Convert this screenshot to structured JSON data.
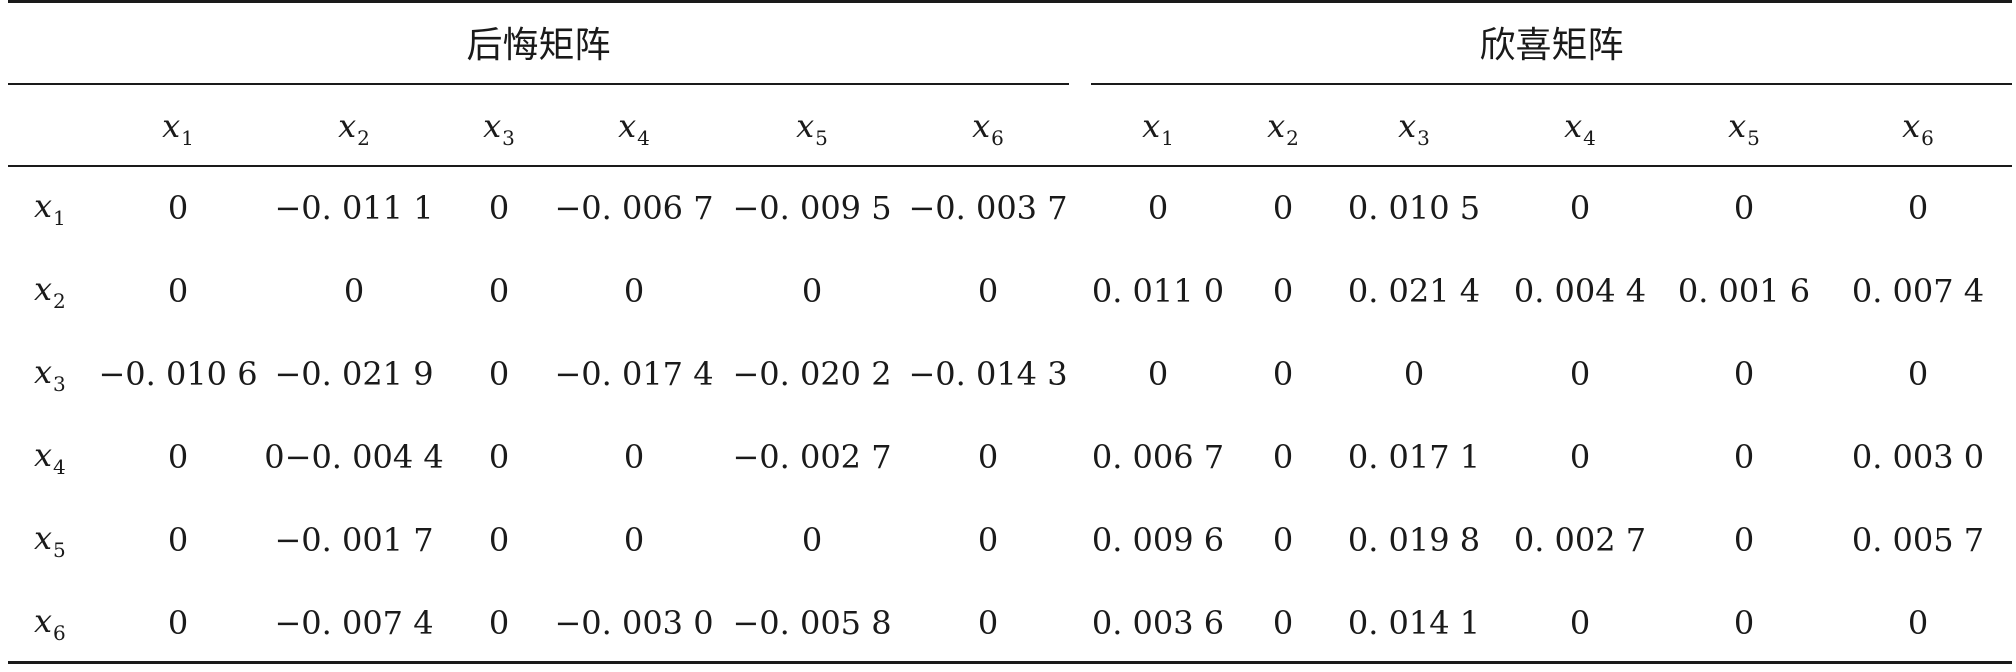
{
  "groups": {
    "regret": "后悔矩阵",
    "rejoice": "欣喜矩阵"
  },
  "var_symbol": "x",
  "col_subs": [
    "1",
    "2",
    "3",
    "4",
    "5",
    "6",
    "1",
    "2",
    "3",
    "4",
    "5",
    "6"
  ],
  "row_subs": [
    "1",
    "2",
    "3",
    "4",
    "5",
    "6"
  ],
  "rows": [
    [
      "0",
      "−0. 011 1",
      "0",
      "−0. 006 7",
      "−0. 009 5",
      "−0. 003 7",
      "0",
      "0",
      "0. 010 5",
      "0",
      "0",
      "0"
    ],
    [
      "0",
      "0",
      "0",
      "0",
      "0",
      "0",
      "0. 011 0",
      "0",
      "0. 021 4",
      "0. 004 4",
      "0. 001 6",
      "0. 007 4"
    ],
    [
      "−0. 010 6",
      "−0. 021 9",
      "0",
      "−0. 017 4",
      "−0. 020 2",
      "−0. 014 3",
      "0",
      "0",
      "0",
      "0",
      "0",
      "0"
    ],
    [
      "0",
      "0−0. 004 4",
      "0",
      "0",
      "−0. 002 7",
      "0",
      "0. 006 7",
      "0",
      "0. 017 1",
      "0",
      "0",
      "0. 003 0"
    ],
    [
      "0",
      "−0. 001 7",
      "0",
      "0",
      "0",
      "0",
      "0. 009 6",
      "0",
      "0. 019 8",
      "0. 002 7",
      "0",
      "0. 005 7"
    ],
    [
      "0",
      "−0. 007 4",
      "0",
      "−0. 003 0",
      "−0. 005 8",
      "0",
      "0. 003 6",
      "0",
      "0. 014 1",
      "0",
      "0",
      "0"
    ]
  ]
}
